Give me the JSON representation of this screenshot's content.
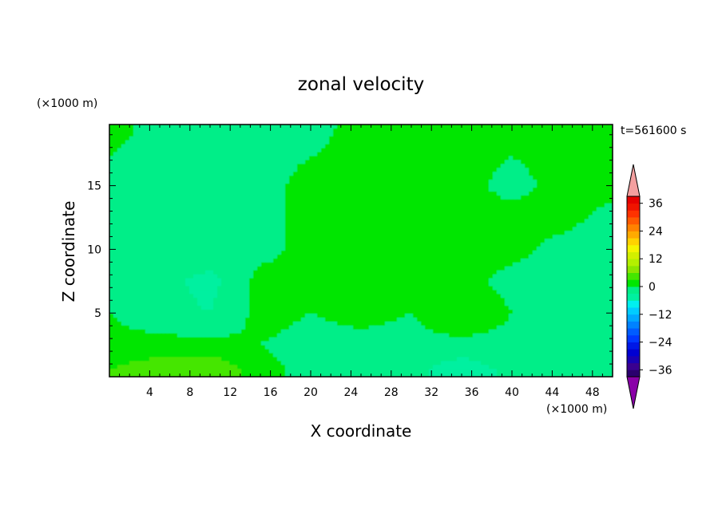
{
  "chart_data": {
    "type": "heatmap",
    "title": "zonal velocity",
    "time_label": "t=561600 s",
    "xlabel": "X coordinate",
    "ylabel": "Z coordinate",
    "x_unit": "(×1000 m)",
    "y_unit": "(×1000 m)",
    "xlim": [
      0,
      50
    ],
    "ylim": [
      0,
      19.8
    ],
    "xticks": [
      4,
      8,
      12,
      16,
      20,
      24,
      28,
      32,
      36,
      40,
      44,
      48
    ],
    "yticks": [
      5,
      10,
      15
    ],
    "colorbar": {
      "tick_labels": [
        36,
        24,
        12,
        0,
        -12,
        -24,
        -36
      ],
      "levels": [
        -39,
        -36,
        -33,
        -30,
        -27,
        -24,
        -21,
        -18,
        -15,
        -12,
        -9,
        -6,
        -3,
        0,
        3,
        6,
        9,
        12,
        15,
        18,
        21,
        24,
        27,
        30,
        33,
        36,
        39
      ],
      "colors": [
        "#2a006e",
        "#3a0090",
        "#1a00b4",
        "#0000d2",
        "#0018e6",
        "#0038ff",
        "#005cff",
        "#0082ff",
        "#00a8ff",
        "#00ccff",
        "#00f0f0",
        "#00f0a0",
        "#00ee88",
        "#00e600",
        "#44e600",
        "#8ce600",
        "#b4f000",
        "#d2f000",
        "#f5f500",
        "#ffd200",
        "#ffaa00",
        "#ff8200",
        "#ff5a00",
        "#ff3200",
        "#f01400",
        "#e60000"
      ],
      "under_color": "#8a00a8",
      "over_color": "#f4a0a0"
    },
    "field": {
      "nx": 11,
      "nz": 8,
      "x_values": [
        0,
        5,
        10,
        15,
        20,
        25,
        30,
        35,
        40,
        45,
        50
      ],
      "z_values": [
        0.5,
        2.5,
        5,
        7.5,
        10,
        12.5,
        15,
        19.5
      ],
      "values": [
        [
          3,
          5,
          6,
          1,
          -1,
          -2,
          -2,
          -5,
          -2,
          0,
          -1
        ],
        [
          1,
          1,
          1,
          0,
          -1,
          -1,
          -1,
          -1,
          -1,
          0,
          0
        ],
        [
          0,
          -2,
          -3,
          1,
          0,
          1,
          0,
          3,
          0,
          -1,
          -2
        ],
        [
          0,
          -2,
          -4,
          1,
          1,
          1,
          1,
          1,
          -1,
          -2,
          -2
        ],
        [
          -1,
          -1,
          -1,
          -1,
          1,
          1,
          1,
          1,
          1,
          -1,
          -2
        ],
        [
          -1,
          -1,
          -1,
          -1,
          1,
          1,
          1,
          1,
          1,
          1,
          -1
        ],
        [
          -1,
          -1,
          -1,
          -1,
          1,
          1,
          1,
          1,
          -1,
          1,
          1
        ],
        [
          1,
          -1,
          -1,
          -1,
          -1,
          1,
          1,
          1,
          1,
          1,
          1
        ]
      ]
    }
  }
}
